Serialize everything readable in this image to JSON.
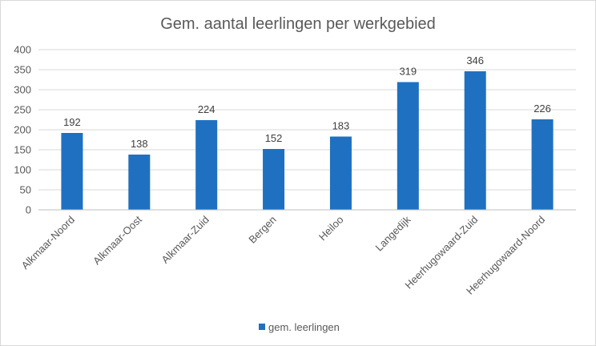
{
  "chart_data": {
    "type": "bar",
    "title": "Gem. aantal leerlingen per werkgebied",
    "categories": [
      "Alkmaar-Noord",
      "Alkmaar-Oost",
      "Alkmaar-Zuid",
      "Bergen",
      "Heiloo",
      "Langedijk",
      "Heerhugowaard-Zuid",
      "Heerhugowaard-Noord"
    ],
    "series": [
      {
        "name": "gem. leerlingen",
        "values": [
          192,
          138,
          224,
          152,
          183,
          319,
          346,
          226
        ]
      }
    ],
    "ylim": [
      0,
      400
    ],
    "yticks": [
      "0",
      "50",
      "100",
      "150",
      "200",
      "250",
      "300",
      "350",
      "400"
    ],
    "grid": true,
    "legend": "bottom",
    "colors": {
      "bar": "#1f70c1",
      "grid": "#d9d9d9",
      "axis": "#bfbfbf"
    }
  }
}
